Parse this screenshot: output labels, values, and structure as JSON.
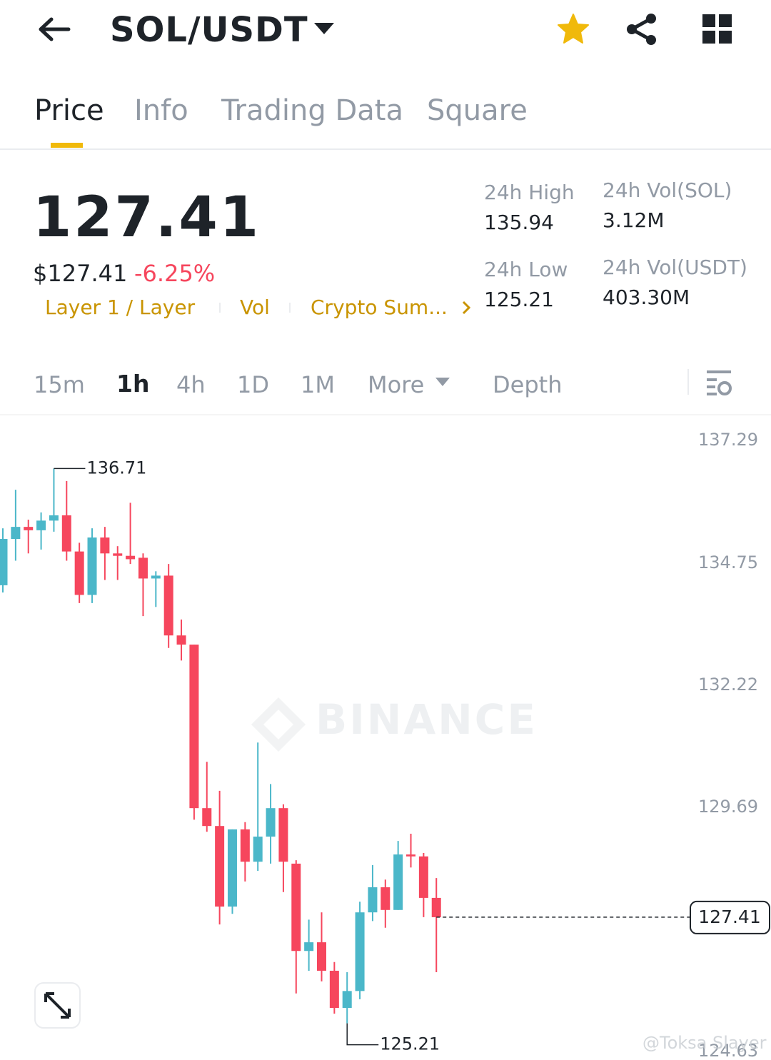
{
  "header": {
    "pair": "SOL/USDT"
  },
  "tabs": {
    "items": [
      "Price",
      "Info",
      "Trading Data",
      "Square"
    ],
    "active": 0
  },
  "ticker": {
    "price": "127.41",
    "usd_price": "$127.41",
    "change": "-6.25%",
    "tags": [
      "Layer 1 / Layer",
      "Vol",
      "Crypto Sum..."
    ]
  },
  "stats": [
    {
      "label": "24h High",
      "value": "135.94"
    },
    {
      "label": "24h Vol(SOL)",
      "value": "3.12M"
    },
    {
      "label": "24h Low",
      "value": "125.21"
    },
    {
      "label": "24h Vol(USDT)",
      "value": "403.30M"
    }
  ],
  "intervals": {
    "items": [
      "15m",
      "1h",
      "4h",
      "1D",
      "1M",
      "More",
      "Depth"
    ],
    "active": 1
  },
  "chart_data": {
    "type": "candlestick",
    "watermark": "BINANCE",
    "credit": "@Toksa Slayer",
    "up_color": "#4bb7c9",
    "down_color": "#f6465d",
    "ylim": [
      124.45,
      137.81
    ],
    "yticks": [
      137.29,
      134.75,
      132.22,
      129.69,
      124.63
    ],
    "max_high": 136.71,
    "min_low": 125.21,
    "last_price": 127.41,
    "open": [
      134.29,
      135.25,
      135.5,
      135.43,
      135.63,
      135.74,
      134.99,
      134.09,
      135.28,
      134.95,
      134.9,
      134.86,
      134.43,
      134.49,
      133.25,
      133.06,
      129.67,
      129.3,
      127.63,
      129.23,
      128.56,
      129.08,
      129.67,
      128.52,
      126.71,
      126.89,
      126.3,
      125.53,
      125.88,
      127.51,
      128.03,
      127.56,
      128.71,
      128.67,
      127.81
    ],
    "high": [
      135.47,
      136.27,
      135.65,
      135.8,
      136.71,
      136.45,
      135.17,
      135.47,
      135.5,
      135.1,
      136.0,
      134.95,
      134.58,
      134.73,
      133.58,
      133.06,
      130.63,
      130.03,
      129.23,
      129.38,
      131.03,
      130.17,
      129.75,
      128.59,
      127.36,
      127.51,
      126.48,
      126.27,
      127.73,
      128.49,
      128.19,
      128.99,
      129.14,
      128.74,
      128.22
    ],
    "low": [
      134.14,
      134.8,
      134.95,
      135.03,
      135.4,
      134.8,
      133.92,
      133.92,
      134.4,
      134.4,
      134.73,
      133.65,
      133.84,
      132.99,
      132.73,
      129.43,
      129.18,
      127.26,
      127.48,
      128.15,
      128.37,
      128.52,
      127.93,
      125.83,
      126.3,
      126.08,
      125.41,
      125.21,
      125.71,
      127.33,
      127.19,
      127.56,
      128.44,
      127.41,
      126.27
    ],
    "close": [
      135.25,
      135.5,
      135.43,
      135.63,
      135.74,
      134.99,
      134.09,
      135.28,
      134.95,
      134.9,
      134.83,
      134.43,
      134.49,
      133.25,
      133.06,
      129.67,
      129.3,
      127.63,
      129.23,
      128.56,
      129.08,
      129.67,
      128.56,
      126.71,
      126.89,
      126.3,
      125.53,
      125.88,
      127.51,
      128.03,
      127.56,
      128.71,
      128.67,
      127.81,
      127.41
    ]
  }
}
